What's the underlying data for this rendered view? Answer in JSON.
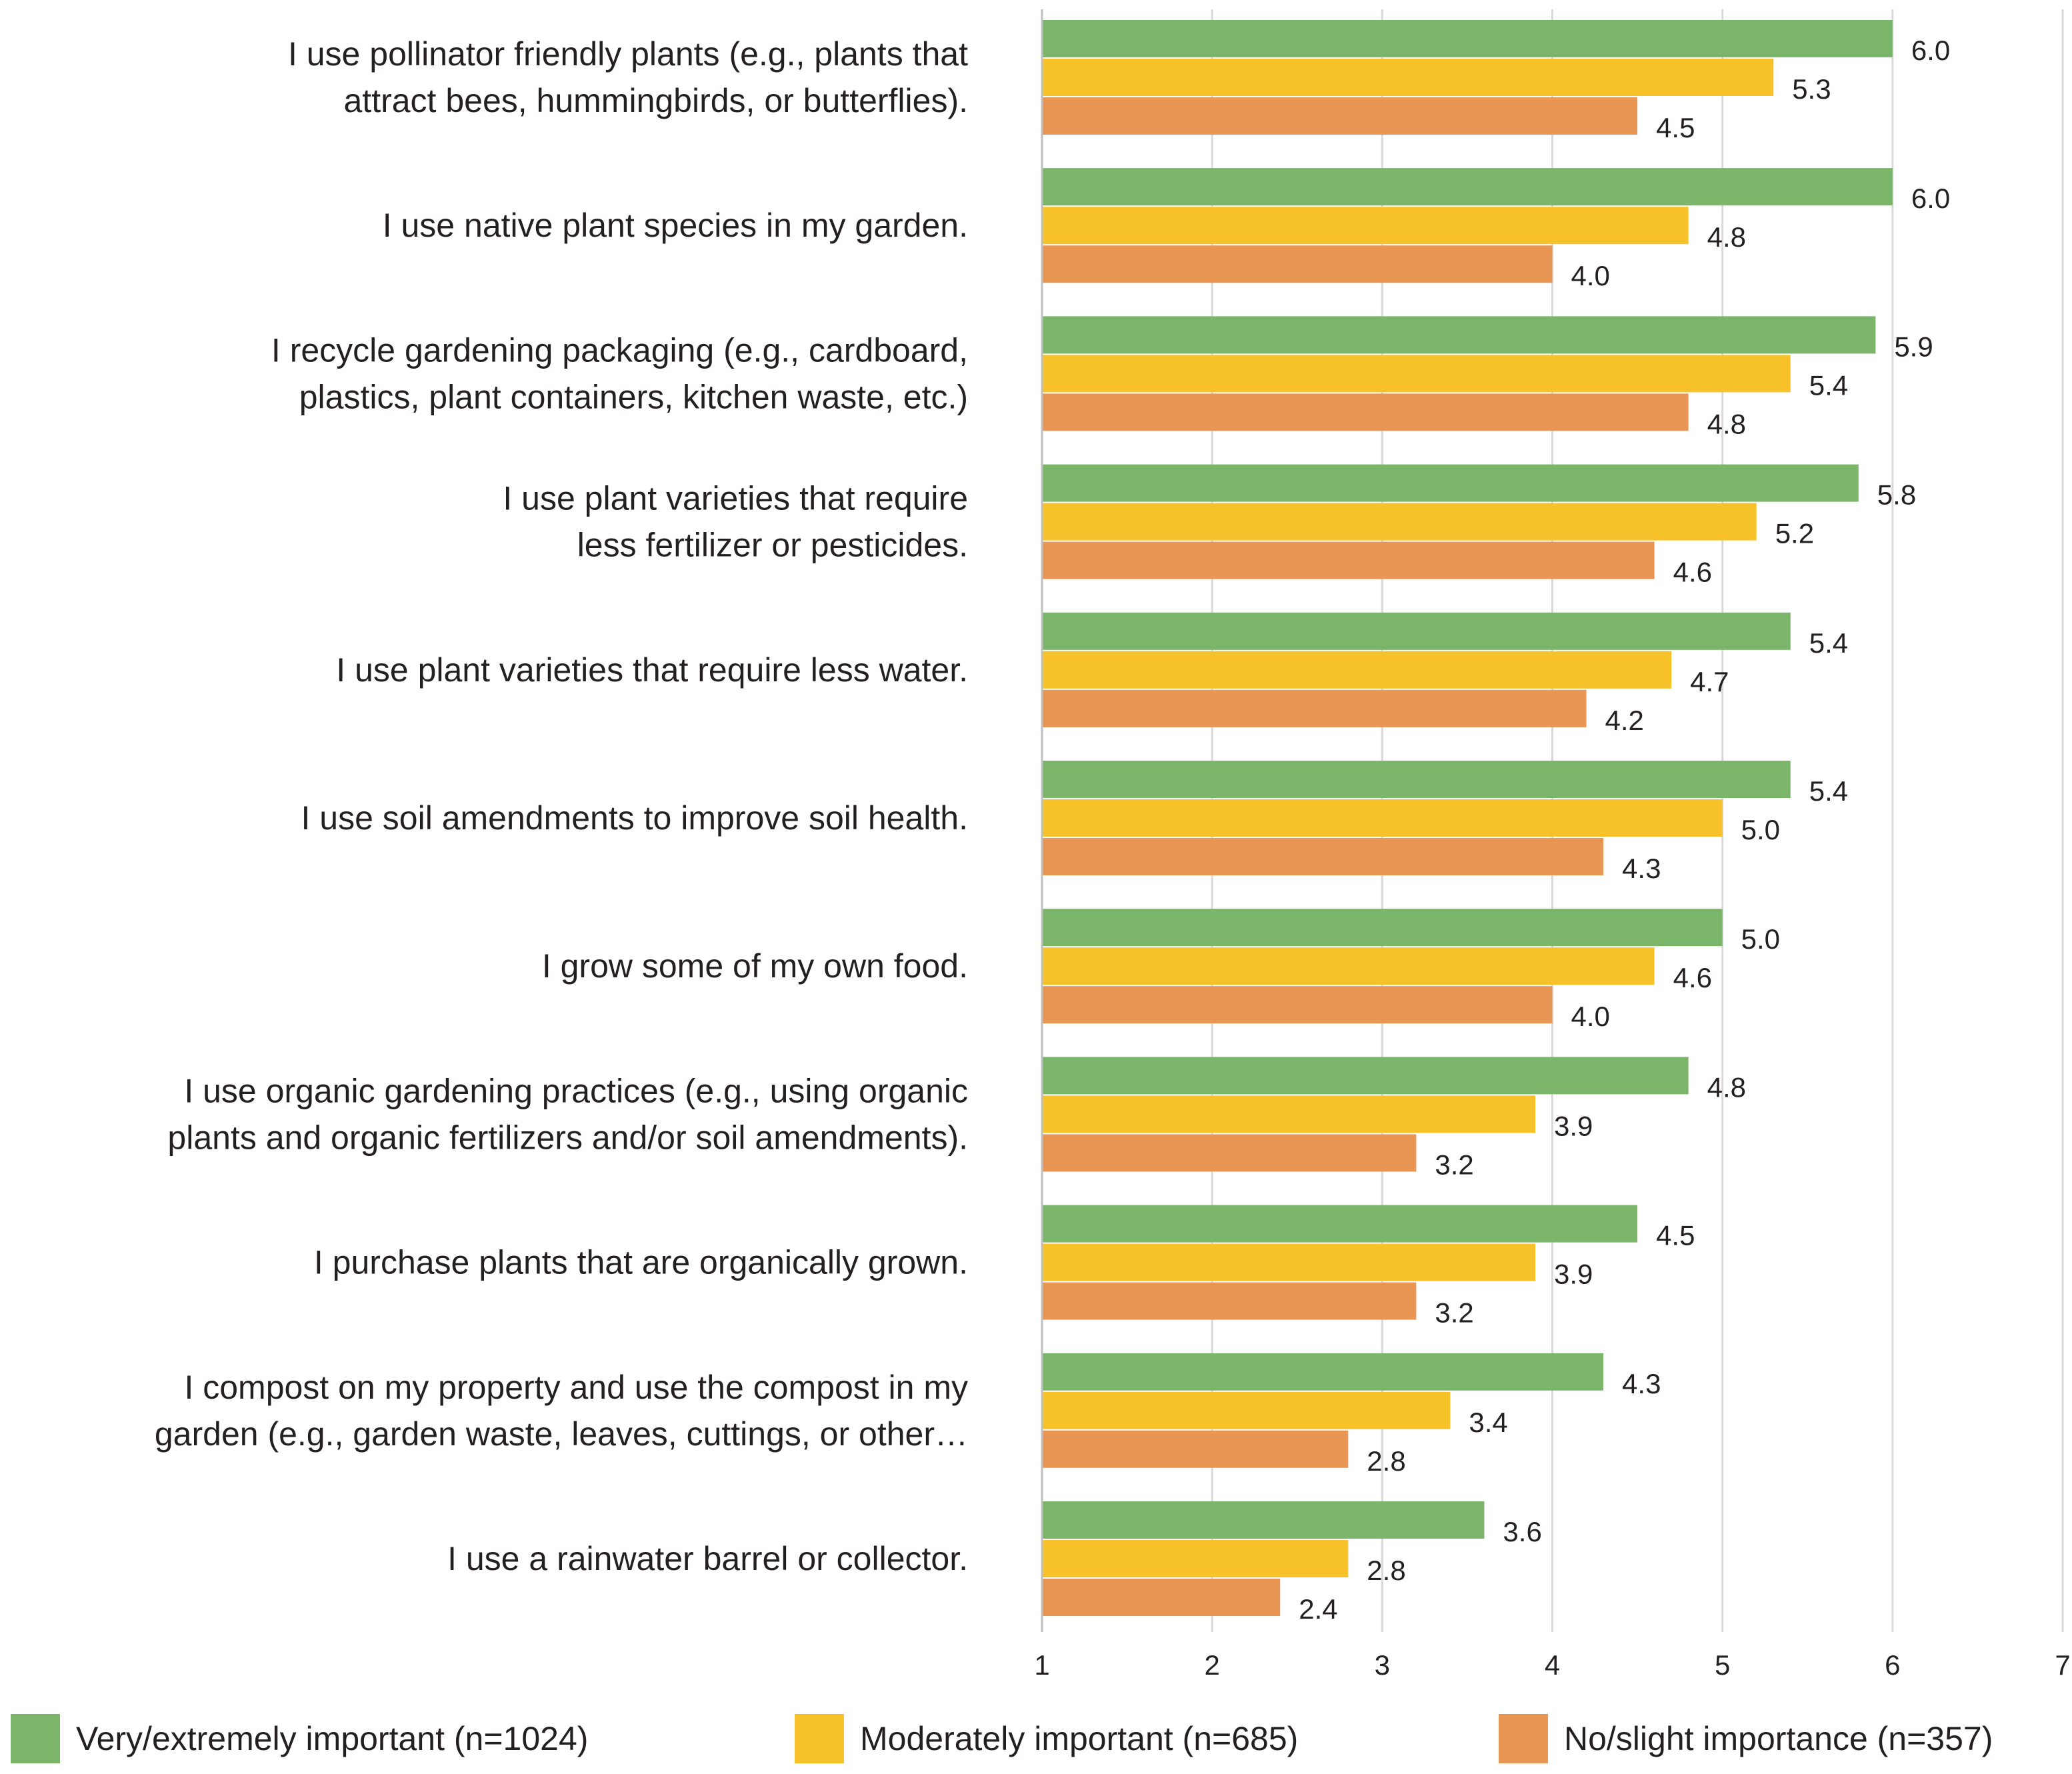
{
  "chart_data": {
    "type": "bar",
    "orientation": "horizontal",
    "categories": [
      [
        "I use pollinator friendly plants (e.g., plants that",
        "attract bees, hummingbirds, or butterflies)."
      ],
      [
        "I use native plant species in my garden."
      ],
      [
        "I recycle gardening packaging (e.g., cardboard,",
        "plastics, plant containers, kitchen waste, etc.)"
      ],
      [
        "I use plant varieties that require",
        "less fertilizer or pesticides."
      ],
      [
        "I use plant varieties that require less water."
      ],
      [
        "I use soil amendments to improve soil health."
      ],
      [
        "I grow some of my own food."
      ],
      [
        "I use organic gardening practices (e.g., using organic",
        "plants and organic fertilizers and/or soil amendments)."
      ],
      [
        "I purchase plants that are organically grown."
      ],
      [
        "I compost on my property and use the compost in my",
        "garden (e.g., garden waste, leaves, cuttings, or other…"
      ],
      [
        "I use a rainwater barrel or collector."
      ]
    ],
    "series": [
      {
        "name": "Very/extremely important (n=1024)",
        "color": "#7ab569",
        "values": [
          6.0,
          6.0,
          5.9,
          5.8,
          5.4,
          5.4,
          5.0,
          4.8,
          4.5,
          4.3,
          3.6
        ],
        "labels": [
          "6.0",
          "6.0",
          "5.9",
          "5.8",
          "5.4",
          "5.4",
          "5.0",
          "4.8",
          "4.5",
          "4.3",
          "3.6"
        ]
      },
      {
        "name": "Moderately important (n=685)",
        "color": "#f7c12a",
        "values": [
          5.3,
          4.8,
          5.4,
          5.2,
          4.7,
          5.0,
          4.6,
          3.9,
          3.9,
          3.4,
          2.8
        ],
        "labels": [
          "5.3",
          "4.8",
          "5.4",
          "5.2",
          "4.7",
          "5.0",
          "4.6",
          "3.9",
          "3.9",
          "3.4",
          "2.8"
        ]
      },
      {
        "name": "No/slight importance (n=357)",
        "color": "#e99553",
        "values": [
          4.5,
          4.0,
          4.8,
          4.6,
          4.2,
          4.3,
          4.0,
          3.2,
          3.2,
          2.8,
          2.4
        ],
        "labels": [
          "4.5",
          "4.0",
          "4.8",
          "4.6",
          "4.2",
          "4.3",
          "4.0",
          "3.2",
          "3.2",
          "2.8",
          "2.4"
        ]
      }
    ],
    "xlim": [
      1,
      7
    ],
    "xticks": [
      "1",
      "2",
      "3",
      "4",
      "5",
      "6",
      "7"
    ],
    "grid": true,
    "gridColor": "#d9d9d9",
    "legend": "bottom",
    "title": "",
    "xlabel": "",
    "ylabel": ""
  }
}
